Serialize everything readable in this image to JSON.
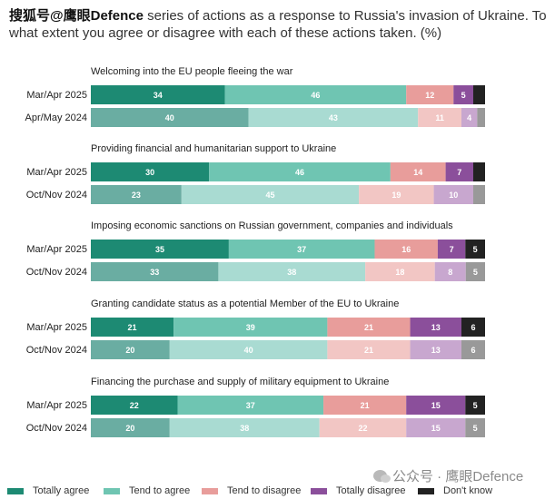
{
  "header": {
    "watermark_prefix": "搜狐号@鹰眼Defence",
    "question_rest": " series of actions as a response to Russia's invasion of Ukraine. To what extent you agree or disagree with each of these actions taken. (%)"
  },
  "watermark": {
    "text": "公众号 · 鹰眼Defence",
    "icon": "wechat-icon"
  },
  "chart_data": {
    "type": "bar",
    "orientation": "horizontal",
    "stacked": true,
    "xlim": [
      0,
      100
    ],
    "colors": {
      "current": [
        "#1d8a73",
        "#6fc5b2",
        "#e89d9b",
        "#8b4f9b",
        "#222222"
      ],
      "previous": [
        "#6aada2",
        "#a9dbd2",
        "#f2c6c4",
        "#c8a7cf",
        "#999999"
      ]
    },
    "legend": [
      "Totally agree",
      "Tend to agree",
      "Tend to disagree",
      "Totally disagree",
      "Don't know"
    ],
    "legend_position": "bottom",
    "groups": [
      {
        "title": "Welcoming into the EU people fleeing the war",
        "rows": [
          {
            "label": "Mar/Apr 2025",
            "period": "current",
            "values": [
              34,
              46,
              12,
              5,
              3
            ],
            "labels": [
              "34",
              "46",
              "12",
              "5",
              ""
            ]
          },
          {
            "label": "Apr/May 2024",
            "period": "previous",
            "values": [
              40,
              43,
              11,
              4,
              2
            ],
            "labels": [
              "40",
              "43",
              "11",
              "4",
              ""
            ]
          }
        ]
      },
      {
        "title": "Providing financial and humanitarian support to Ukraine",
        "rows": [
          {
            "label": "Mar/Apr 2025",
            "period": "current",
            "values": [
              30,
              46,
              14,
              7,
              3
            ],
            "labels": [
              "30",
              "46",
              "14",
              "7",
              ""
            ]
          },
          {
            "label": "Oct/Nov 2024",
            "period": "previous",
            "values": [
              23,
              45,
              19,
              10,
              3
            ],
            "labels": [
              "23",
              "45",
              "19",
              "10",
              ""
            ]
          }
        ]
      },
      {
        "title": "Imposing economic sanctions on Russian government, companies and individuals",
        "rows": [
          {
            "label": "Mar/Apr 2025",
            "period": "current",
            "values": [
              35,
              37,
              16,
              7,
              5
            ],
            "labels": [
              "35",
              "37",
              "16",
              "7",
              "5"
            ]
          },
          {
            "label": "Oct/Nov 2024",
            "period": "previous",
            "values": [
              33,
              38,
              18,
              8,
              5
            ],
            "labels": [
              "33",
              "38",
              "18",
              "8",
              "5"
            ]
          }
        ]
      },
      {
        "title": "Granting candidate status as a potential Member of the EU to Ukraine",
        "rows": [
          {
            "label": "Mar/Apr 2025",
            "period": "current",
            "values": [
              21,
              39,
              21,
              13,
              6
            ],
            "labels": [
              "21",
              "39",
              "21",
              "13",
              "6"
            ]
          },
          {
            "label": "Oct/Nov 2024",
            "period": "previous",
            "values": [
              20,
              40,
              21,
              13,
              6
            ],
            "labels": [
              "20",
              "40",
              "21",
              "13",
              "6"
            ]
          }
        ]
      },
      {
        "title": "Financing the purchase and supply of military equipment to Ukraine",
        "rows": [
          {
            "label": "Mar/Apr 2025",
            "period": "current",
            "values": [
              22,
              37,
              21,
              15,
              5
            ],
            "labels": [
              "22",
              "37",
              "21",
              "15",
              "5"
            ]
          },
          {
            "label": "Oct/Nov 2024",
            "period": "previous",
            "values": [
              20,
              38,
              22,
              15,
              5
            ],
            "labels": [
              "20",
              "38",
              "22",
              "15",
              "5"
            ]
          }
        ]
      }
    ]
  }
}
